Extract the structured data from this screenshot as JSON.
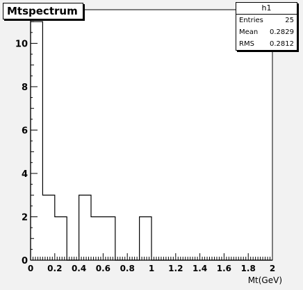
{
  "title": "Mtspectrum",
  "stats": {
    "name": "h1",
    "rows": [
      {
        "label": "Entries",
        "value": "25"
      },
      {
        "label": "Mean",
        "value": "0.2829"
      },
      {
        "label": "RMS",
        "value": "0.2812"
      }
    ]
  },
  "chart_data": {
    "type": "bar",
    "histogram": true,
    "title": "Mtspectrum",
    "xlabel": "Mt(GeV)",
    "ylabel": "",
    "xlim": [
      0,
      2
    ],
    "ylim": [
      0,
      11.55
    ],
    "bin_edges": [
      0,
      0.1,
      0.2,
      0.3,
      0.4,
      0.5,
      0.6,
      0.7,
      0.8,
      0.9,
      1.0,
      1.1,
      1.2,
      1.3,
      1.4,
      1.5,
      1.6,
      1.7,
      1.8,
      1.9,
      2.0
    ],
    "values": [
      11,
      3,
      2,
      0,
      3,
      2,
      2,
      0,
      0,
      2,
      0,
      0,
      0,
      0,
      0,
      0,
      0,
      0,
      0,
      0
    ],
    "x_ticks": [
      "0",
      "0.2",
      "0.4",
      "0.6",
      "0.8",
      "1",
      "1.2",
      "1.4",
      "1.6",
      "1.8",
      "2"
    ],
    "y_ticks": [
      "0",
      "2",
      "4",
      "6",
      "8",
      "10"
    ],
    "grid": false,
    "line_color": "#000000",
    "background": "#ffffff",
    "frame_color": "#f2f2f2"
  }
}
